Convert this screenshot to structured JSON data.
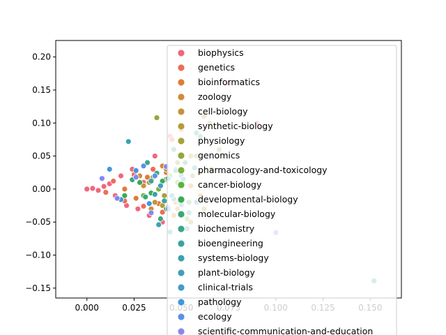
{
  "chart_data": {
    "type": "scatter",
    "title": "",
    "xlabel": "",
    "ylabel": "",
    "xlim": [
      -0.0165,
      0.1665
    ],
    "ylim": [
      -0.165,
      0.225
    ],
    "x_ticks": [
      0.0,
      0.025,
      0.05,
      0.075,
      0.1,
      0.125,
      0.15
    ],
    "x_tick_labels": [
      "0.000",
      "0.025",
      "0.050",
      "0.075",
      "0.100",
      "0.125",
      "0.150"
    ],
    "y_ticks": [
      -0.15,
      -0.1,
      -0.05,
      0.0,
      0.05,
      0.1,
      0.15,
      0.2
    ],
    "y_tick_labels": [
      "−0.15",
      "−0.10",
      "−0.05",
      "0.00",
      "0.05",
      "0.10",
      "0.15",
      "0.20"
    ],
    "grid": false,
    "legend_position": "right",
    "series": [
      {
        "name": "biophysics",
        "color": "#f0677d",
        "points": [
          [
            0.0,
            0.0
          ],
          [
            0.003,
            0.001
          ],
          [
            0.006,
            -0.002
          ],
          [
            0.009,
            0.004
          ],
          [
            0.012,
            0.008
          ],
          [
            0.015,
            -0.01
          ],
          [
            0.018,
            0.02
          ],
          [
            0.021,
            -0.025
          ],
          [
            0.024,
            0.03
          ],
          [
            0.027,
            -0.03
          ],
          [
            0.03,
            0.01
          ],
          [
            0.033,
            -0.04
          ],
          [
            0.036,
            0.05
          ],
          [
            0.04,
            -0.05
          ],
          [
            0.044,
            0.08
          ],
          [
            0.047,
            -0.02
          ],
          [
            0.09,
            0.1
          ],
          [
            0.075,
            0.16
          ]
        ]
      },
      {
        "name": "genetics",
        "color": "#ee6c58",
        "points": [
          [
            0.01,
            -0.005
          ],
          [
            0.014,
            0.012
          ],
          [
            0.02,
            -0.018
          ],
          [
            0.025,
            0.022
          ],
          [
            0.03,
            -0.026
          ],
          [
            0.035,
            0.03
          ],
          [
            0.04,
            -0.035
          ],
          [
            0.045,
            0.075
          ],
          [
            0.05,
            0.09
          ]
        ]
      },
      {
        "name": "bioinformatics",
        "color": "#e07b37",
        "points": [
          [
            0.02,
            0.0
          ],
          [
            0.026,
            -0.014
          ],
          [
            0.032,
            0.018
          ],
          [
            0.038,
            -0.022
          ],
          [
            0.042,
            0.025
          ],
          [
            0.055,
            0.005
          ]
        ]
      },
      {
        "name": "zoology",
        "color": "#d38a37",
        "points": [
          [
            0.028,
            0.02
          ],
          [
            0.034,
            -0.03
          ],
          [
            0.04,
            0.035
          ],
          [
            0.046,
            -0.04
          ],
          [
            0.052,
            0.04
          ],
          [
            0.06,
            -0.01
          ]
        ]
      },
      {
        "name": "cell-biology",
        "color": "#c4933a",
        "points": [
          [
            0.03,
            0.005
          ],
          [
            0.036,
            -0.02
          ],
          [
            0.042,
            0.03
          ],
          [
            0.048,
            -0.03
          ],
          [
            0.055,
            0.05
          ],
          [
            0.062,
            0.11
          ]
        ]
      },
      {
        "name": "synthetic-biology",
        "color": "#b59c3a",
        "points": [
          [
            0.033,
            0.01
          ],
          [
            0.04,
            -0.025
          ],
          [
            0.047,
            0.03
          ],
          [
            0.053,
            -0.045
          ],
          [
            0.06,
            0.025
          ]
        ]
      },
      {
        "name": "physiology",
        "color": "#a5a23a",
        "points": [
          [
            0.035,
            0.018
          ],
          [
            0.041,
            -0.01
          ],
          [
            0.048,
            0.04
          ],
          [
            0.055,
            -0.05
          ],
          [
            0.065,
            0.1
          ],
          [
            0.07,
            0.06
          ]
        ]
      },
      {
        "name": "genomics",
        "color": "#92a83a",
        "points": [
          [
            0.037,
            0.108
          ],
          [
            0.042,
            0.015
          ],
          [
            0.049,
            -0.02
          ],
          [
            0.056,
            0.02
          ],
          [
            0.062,
            -0.03
          ]
        ]
      },
      {
        "name": "pharmacology-and-toxicology",
        "color": "#7bb03a",
        "points": [
          [
            0.038,
            0.0
          ],
          [
            0.044,
            0.02
          ],
          [
            0.05,
            -0.04
          ],
          [
            0.058,
            0.05
          ],
          [
            0.066,
            0.03
          ]
        ]
      },
      {
        "name": "cancer-biology",
        "color": "#59b43a",
        "points": [
          [
            0.03,
            -0.01
          ],
          [
            0.036,
            0.02
          ],
          [
            0.042,
            -0.03
          ],
          [
            0.048,
            0.01
          ],
          [
            0.054,
            -0.02
          ]
        ]
      },
      {
        "name": "developmental-biology",
        "color": "#3aaa55",
        "points": [
          [
            0.02,
            -0.01
          ],
          [
            0.028,
            0.01
          ],
          [
            0.034,
            -0.006
          ],
          [
            0.04,
            0.012
          ],
          [
            0.046,
            -0.015
          ],
          [
            0.052,
            0.04
          ]
        ]
      },
      {
        "name": "molecular-biology",
        "color": "#3aa876",
        "points": [
          [
            0.024,
            0.014
          ],
          [
            0.031,
            -0.012
          ],
          [
            0.037,
            0.024
          ],
          [
            0.043,
            -0.028
          ],
          [
            0.05,
            0.006
          ]
        ]
      },
      {
        "name": "biochemistry",
        "color": "#3ba58c",
        "points": [
          [
            0.032,
            0.04
          ],
          [
            0.039,
            -0.045
          ],
          [
            0.046,
            0.06
          ],
          [
            0.053,
            -0.06
          ],
          [
            0.06,
            0.08
          ],
          [
            0.058,
            0.085
          ],
          [
            0.152,
            -0.139
          ]
        ]
      },
      {
        "name": "bioengineering",
        "color": "#3da39d",
        "points": [
          [
            0.034,
            0.012
          ],
          [
            0.041,
            -0.018
          ],
          [
            0.047,
            0.028
          ],
          [
            0.054,
            -0.036
          ]
        ]
      },
      {
        "name": "systems-biology",
        "color": "#3ea1ab",
        "points": [
          [
            0.036,
            -0.008
          ],
          [
            0.043,
            0.016
          ],
          [
            0.05,
            -0.024
          ],
          [
            0.057,
            0.032
          ]
        ]
      },
      {
        "name": "plant-biology",
        "color": "#3f9fb9",
        "points": [
          [
            0.022,
            0.072
          ],
          [
            0.038,
            -0.054
          ],
          [
            0.044,
            -0.065
          ],
          [
            0.05,
            0.02
          ],
          [
            0.058,
            -0.02
          ]
        ]
      },
      {
        "name": "clinical-trials",
        "color": "#419cc9",
        "points": [
          [
            0.039,
            0.005
          ],
          [
            0.045,
            -0.01
          ],
          [
            0.051,
            0.015
          ]
        ]
      },
      {
        "name": "pathology",
        "color": "#4098dd",
        "points": [
          [
            0.012,
            0.03
          ],
          [
            0.018,
            -0.016
          ],
          [
            0.026,
            0.028
          ],
          [
            0.033,
            -0.022
          ]
        ]
      },
      {
        "name": "ecology",
        "color": "#5b90e9",
        "points": [
          [
            0.03,
            0.035
          ],
          [
            0.036,
            0.02
          ],
          [
            0.043,
            -0.03
          ],
          [
            0.05,
            0.005
          ]
        ]
      },
      {
        "name": "scientific-communication-and-education",
        "color": "#8487f0",
        "points": [
          [
            0.008,
            0.016
          ],
          [
            0.016,
            -0.014
          ],
          [
            0.026,
            0.018
          ],
          [
            0.034,
            -0.036
          ],
          [
            0.042,
            0.034
          ],
          [
            0.1,
            -0.066
          ]
        ]
      }
    ]
  }
}
